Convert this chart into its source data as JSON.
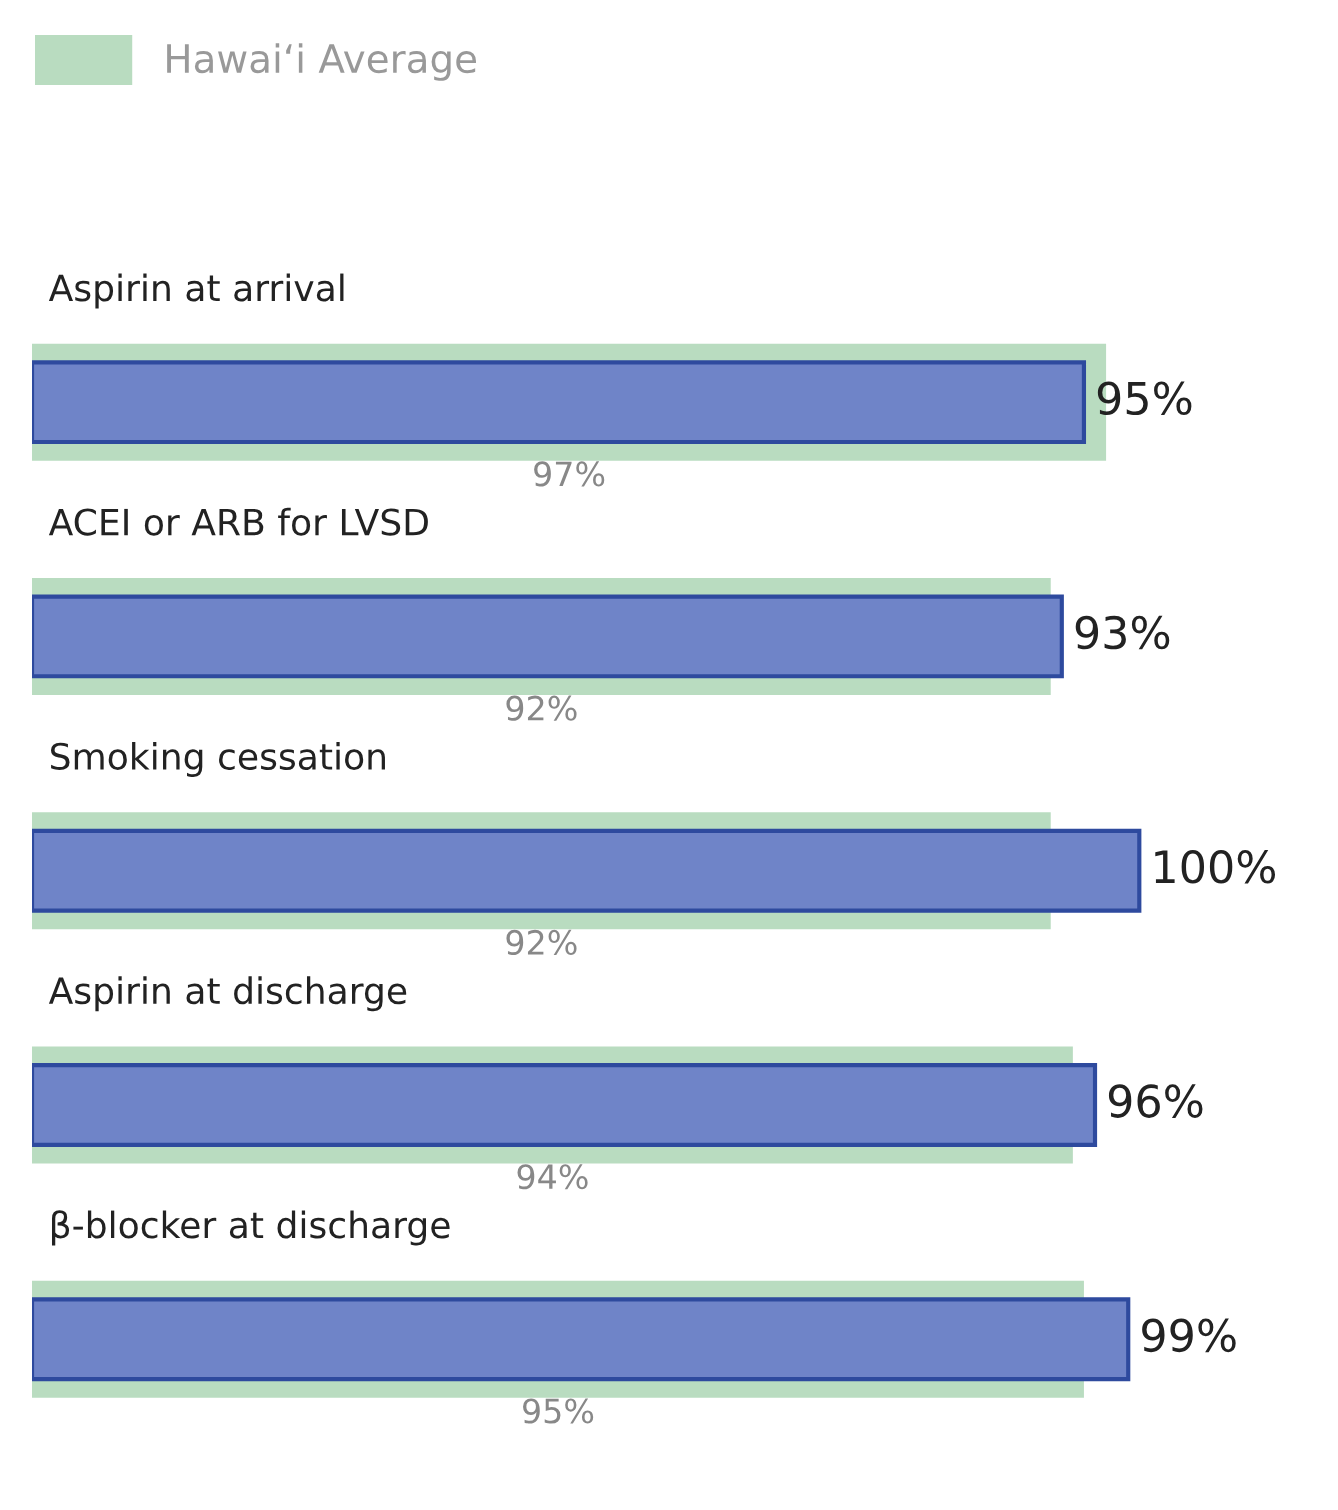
{
  "chart_data": {
    "type": "bar",
    "orientation": "horizontal",
    "categories": [
      "Aspirin at arrival",
      "ACEI or ARB for LVSD",
      "Smoking cessation",
      "Aspirin at discharge",
      "β-blocker at discharge"
    ],
    "series": [
      {
        "color": "#6f84c8",
        "values": [
          95,
          93,
          100,
          96,
          99
        ],
        "value_labels": [
          "95%",
          "93%",
          "100%",
          "96%",
          "99%"
        ]
      },
      {
        "name": "Hawai‘i Average",
        "color": "#b9dcc0",
        "values": [
          97,
          92,
          92,
          94,
          95
        ],
        "value_labels": [
          "97%",
          "92%",
          "92%",
          "94%",
          "95%"
        ]
      }
    ],
    "legend": "top left"
  }
}
